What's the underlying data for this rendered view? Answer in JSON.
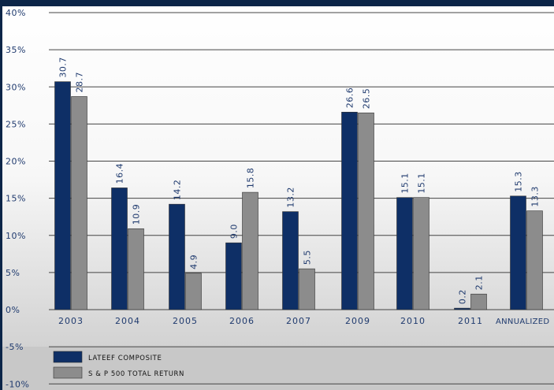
{
  "chart_data": {
    "type": "bar",
    "categories": [
      "2003",
      "2004",
      "2005",
      "2006",
      "2007",
      "2009",
      "2010",
      "2011",
      "Annualized"
    ],
    "series": [
      {
        "name": "Lateef Composite",
        "values": [
          30.7,
          16.4,
          14.2,
          9.0,
          13.2,
          26.6,
          15.1,
          0.2,
          15.3
        ],
        "labels": [
          "30.7",
          "16.4",
          "14.2",
          "9.0",
          "13.2",
          "26.6",
          "15.1",
          "0.2",
          "15.3"
        ]
      },
      {
        "name": "S & P 500 Total Return",
        "values": [
          28.7,
          10.9,
          4.9,
          15.8,
          5.5,
          26.5,
          15.1,
          2.1,
          13.3
        ],
        "labels": [
          "28.7",
          "10.9",
          "4.9",
          "15.8",
          "5.5",
          "26.5",
          "15.1",
          "2.1",
          "13.3"
        ]
      }
    ],
    "yticks": [
      "40%",
      "35%",
      "30%",
      "25%",
      "20%",
      "15%",
      "10%",
      "5%",
      "0%",
      "-5%",
      "-10%"
    ],
    "ylim": [
      -10,
      40
    ],
    "title": "",
    "xlabel": "",
    "ylabel": "",
    "legend": "bottom-left",
    "grid": true
  },
  "colors": {
    "lateef": "#0e2f66",
    "sp500": "#8c8c8c",
    "grid": "#444444",
    "label": "#1f3a6e",
    "frame": "#0b2548"
  }
}
